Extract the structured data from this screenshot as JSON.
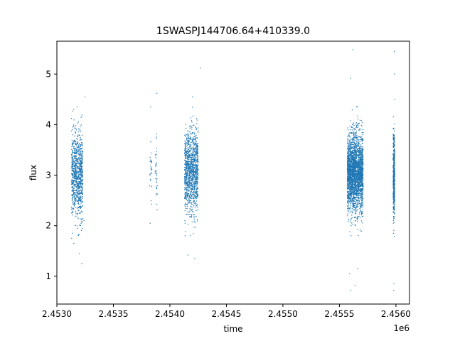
{
  "chart_data": {
    "type": "scatter",
    "title": "1SWASPJ144706.64+410339.0",
    "xlabel": "time",
    "ylabel": "flux",
    "x_offset_label": "1e6",
    "xlim": [
      2453000,
      2456120
    ],
    "ylim": [
      0.45,
      5.65
    ],
    "x_ticks": [
      2453000,
      2453500,
      2454000,
      2454500,
      2455000,
      2455500,
      2456000
    ],
    "x_tick_labels": [
      "2.4530",
      "2.4535",
      "2.4540",
      "2.4545",
      "2.4550",
      "2.4555",
      "2.4560"
    ],
    "y_ticks": [
      1,
      2,
      3,
      4,
      5
    ],
    "y_tick_labels": [
      "1",
      "2",
      "3",
      "4",
      "5"
    ],
    "grid": false,
    "point_color": "#1f77b4",
    "series": [
      {
        "clusters": [
          {
            "x_range": [
              2453130,
              2453230
            ],
            "y_center": 3.0,
            "y_spread": 0.55,
            "count": 900
          },
          {
            "x_range": [
              2453820,
              2453840
            ],
            "y_center": 3.1,
            "y_spread": 0.45,
            "count": 25
          },
          {
            "x_range": [
              2453870,
              2453890
            ],
            "y_center": 3.1,
            "y_spread": 0.4,
            "count": 35
          },
          {
            "x_range": [
              2454130,
              2454250
            ],
            "y_center": 3.05,
            "y_spread": 0.55,
            "count": 1200
          },
          {
            "x_range": [
              2455570,
              2455710
            ],
            "y_center": 3.05,
            "y_spread": 0.5,
            "count": 2600
          },
          {
            "x_range": [
              2455975,
              2455990
            ],
            "y_center": 3.0,
            "y_spread": 0.55,
            "count": 450
          }
        ],
        "outliers": [
          {
            "x": 2453140,
            "y": 1.85
          },
          {
            "x": 2453150,
            "y": 1.65
          },
          {
            "x": 2453200,
            "y": 1.45
          },
          {
            "x": 2453220,
            "y": 1.25
          },
          {
            "x": 2453250,
            "y": 4.55
          },
          {
            "x": 2453180,
            "y": 4.35
          },
          {
            "x": 2453240,
            "y": 2.1
          },
          {
            "x": 2453830,
            "y": 4.35
          },
          {
            "x": 2453885,
            "y": 4.62
          },
          {
            "x": 2453825,
            "y": 2.05
          },
          {
            "x": 2454160,
            "y": 1.42
          },
          {
            "x": 2454220,
            "y": 1.35
          },
          {
            "x": 2454270,
            "y": 5.12
          },
          {
            "x": 2454200,
            "y": 4.55
          },
          {
            "x": 2455620,
            "y": 5.48
          },
          {
            "x": 2455600,
            "y": 0.72
          },
          {
            "x": 2455640,
            "y": 0.82
          },
          {
            "x": 2455590,
            "y": 1.05
          },
          {
            "x": 2455660,
            "y": 1.15
          },
          {
            "x": 2455600,
            "y": 4.92
          },
          {
            "x": 2455985,
            "y": 5.45
          },
          {
            "x": 2455985,
            "y": 5.0
          },
          {
            "x": 2455980,
            "y": 0.72
          },
          {
            "x": 2455983,
            "y": 0.85
          },
          {
            "x": 2455978,
            "y": 1.85
          },
          {
            "x": 2455990,
            "y": 4.5
          }
        ]
      }
    ]
  }
}
